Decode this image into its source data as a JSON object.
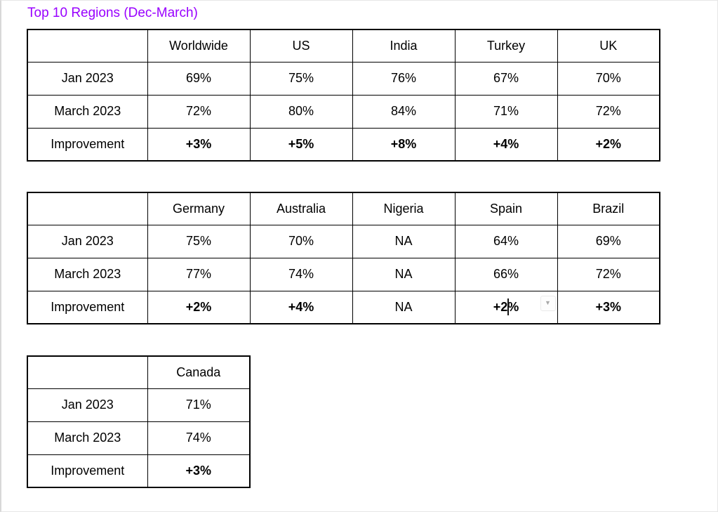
{
  "title": {
    "text": "Top 10 Regions (Dec-March)"
  },
  "colors": {
    "title_purple": "#9900ff",
    "improvement_green": "#00e30c",
    "table_border": "#000000",
    "body_text": "#000000"
  },
  "icons": {
    "table_dropdown": {
      "glyph": "▼"
    }
  },
  "ui_state": {
    "text_cursor": {
      "visible": true,
      "cell": "Spain Improvement",
      "after_text": "+2"
    },
    "dropdown_button": {
      "visible": true,
      "near_cell": "Spain Improvement"
    }
  },
  "tables": [
    {
      "headers": [
        "",
        "Worldwide",
        "US",
        "India",
        "Turkey",
        "UK"
      ],
      "rows": [
        {
          "label": "Jan 2023",
          "values": [
            "69%",
            "75%",
            "76%",
            "67%",
            "70%"
          ]
        },
        {
          "label": "March 2023",
          "values": [
            "72%",
            "80%",
            "84%",
            "71%",
            "72%"
          ]
        },
        {
          "label": "Improvement",
          "values": [
            "+3%",
            "+5%",
            "+8%",
            "+4%",
            "+2%"
          ]
        }
      ]
    },
    {
      "headers": [
        "",
        "Germany",
        "Australia",
        "Nigeria",
        "Spain",
        "Brazil"
      ],
      "rows": [
        {
          "label": "Jan 2023",
          "values": [
            "75%",
            "70%",
            "NA",
            "64%",
            "69%"
          ]
        },
        {
          "label": "March 2023",
          "values": [
            "77%",
            "74%",
            "NA",
            "66%",
            "72%"
          ]
        },
        {
          "label": "Improvement",
          "values": [
            "+2%",
            "+4%",
            "NA",
            "+2%",
            "+3%"
          ]
        }
      ]
    },
    {
      "headers": [
        "",
        "Canada"
      ],
      "rows": [
        {
          "label": "Jan 2023",
          "values": [
            "71%"
          ]
        },
        {
          "label": "March 2023",
          "values": [
            "74%"
          ]
        },
        {
          "label": "Improvement",
          "values": [
            "+3%"
          ]
        }
      ]
    }
  ]
}
